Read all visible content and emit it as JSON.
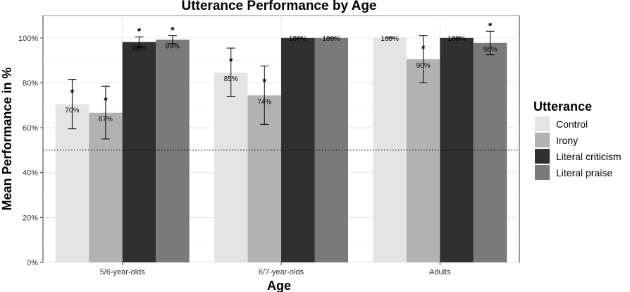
{
  "chart_data": {
    "type": "bar",
    "title": "Utterance Performance by Age",
    "xlabel": "Age",
    "ylabel": "Mean Performance in %",
    "categories": [
      "5/6-year-olds",
      "6/7-year-olds",
      "Adults"
    ],
    "ylim": [
      0,
      110
    ],
    "yticks": [
      0,
      20,
      40,
      60,
      80,
      100
    ],
    "ytick_labels": [
      "0%",
      "20%",
      "40%",
      "60%",
      "80%",
      "100%"
    ],
    "reference_line": 50,
    "grid": true,
    "legend": {
      "title": "Utterance",
      "position": "right"
    },
    "series": [
      {
        "name": "Control",
        "color": "#e4e4e4",
        "values": [
          70.5,
          84.5,
          100
        ],
        "labels": [
          "70%",
          "85%",
          "100%"
        ],
        "error_low": [
          59.5,
          74,
          100
        ],
        "error_high": [
          81.5,
          95.5,
          100
        ],
        "significant": [
          true,
          true,
          false
        ]
      },
      {
        "name": "Irony",
        "color": "#b2b2b2",
        "values": [
          66.7,
          74.4,
          90.5
        ],
        "labels": [
          "67%",
          "74%",
          "90%"
        ],
        "error_low": [
          55,
          61.5,
          80
        ],
        "error_high": [
          78.5,
          87.5,
          101
        ],
        "significant": [
          true,
          true,
          true
        ]
      },
      {
        "name": "Literal criticism",
        "color": "#303030",
        "values": [
          98.2,
          100,
          100
        ],
        "labels": [
          "98%",
          "100%",
          "100%"
        ],
        "error_low": [
          96,
          100,
          100
        ],
        "error_high": [
          100.5,
          100,
          100
        ],
        "significant": [
          true,
          false,
          false
        ]
      },
      {
        "name": "Literal praise",
        "color": "#7a7a7a",
        "values": [
          99.2,
          100,
          97.8
        ],
        "labels": [
          "99%",
          "100%",
          "98%"
        ],
        "error_low": [
          97.5,
          100,
          92.5
        ],
        "error_high": [
          101,
          100,
          103
        ],
        "significant": [
          true,
          false,
          true
        ]
      }
    ]
  }
}
